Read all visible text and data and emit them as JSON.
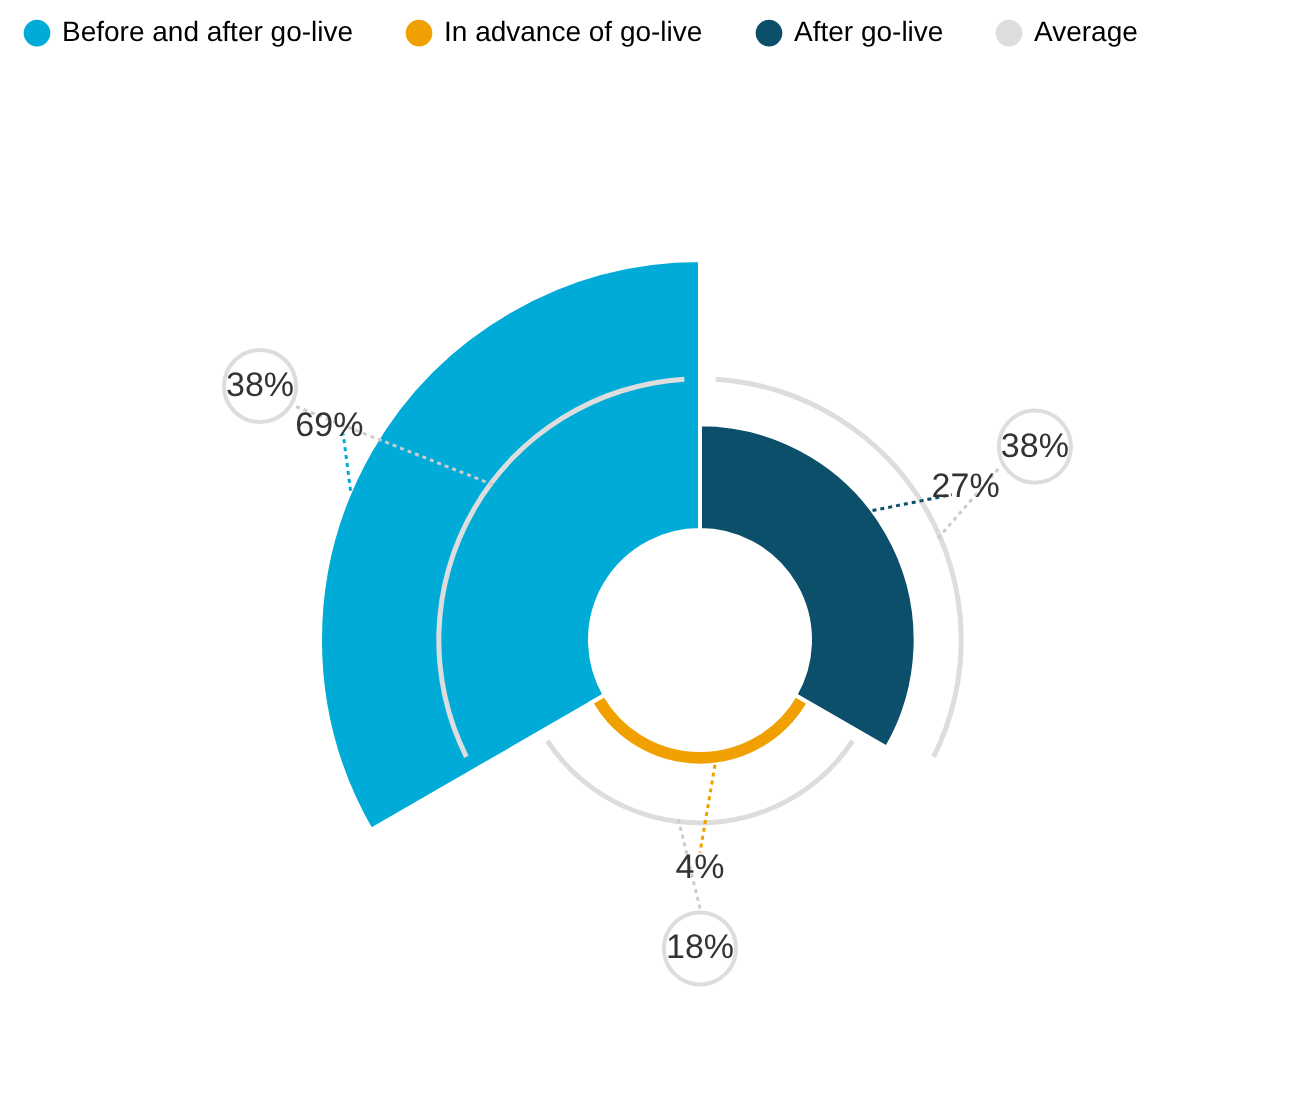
{
  "chart_data": {
    "type": "other",
    "categories": [
      "Before and after go-live",
      "In advance of go-live",
      "After go-live"
    ],
    "colors": [
      "#00acd7",
      "#f0a000",
      "#0c4f6b"
    ],
    "values": [
      69,
      4,
      27
    ],
    "value_labels": [
      "69%",
      "4%",
      "27%"
    ],
    "series": [
      {
        "name": "Average",
        "color": "#dddddd",
        "values": [
          38,
          18,
          38
        ],
        "value_labels": [
          "38%",
          "18%",
          "38%"
        ]
      }
    ],
    "legend": "top"
  }
}
